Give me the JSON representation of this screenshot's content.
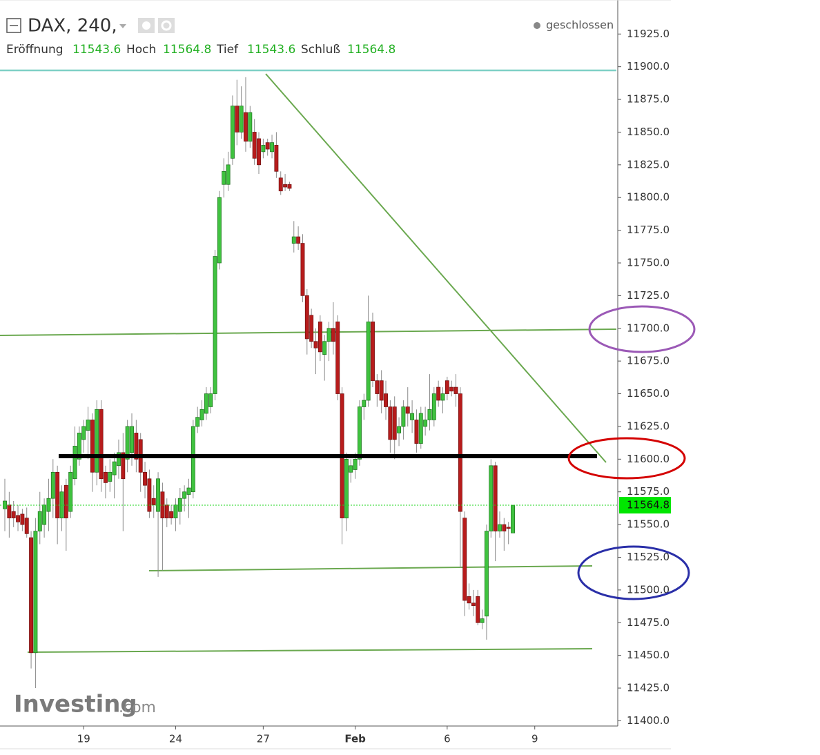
{
  "chart_data": {
    "type": "candlestick",
    "header": {
      "symbol": "DAX, 240,",
      "status": "geschlossen",
      "fields": [
        {
          "label": "Eröffnung",
          "value": 11543.6
        },
        {
          "label": "Hoch",
          "value": 11564.8
        },
        {
          "label": "Tief",
          "value": 11543.6
        },
        {
          "label": "Schluß",
          "value": 11564.8
        }
      ]
    },
    "logo": [
      "Investing",
      ".com"
    ],
    "last_price": {
      "value": 11564.8,
      "label": "11564.8"
    },
    "categories": [
      null,
      null,
      null,
      null,
      null,
      null,
      null,
      null,
      null,
      null,
      null,
      null,
      null,
      null,
      null,
      null,
      null,
      null,
      "19",
      null,
      null,
      null,
      null,
      null,
      null,
      null,
      null,
      null,
      null,
      null,
      null,
      null,
      null,
      null,
      null,
      null,
      null,
      null,
      null,
      "24",
      null,
      null,
      null,
      null,
      null,
      null,
      null,
      null,
      null,
      null,
      null,
      null,
      null,
      null,
      null,
      null,
      null,
      null,
      null,
      "27",
      null,
      null,
      null,
      null,
      null,
      null,
      null,
      null,
      null,
      null,
      null,
      null,
      null,
      null,
      null,
      null,
      null,
      null,
      null,
      null,
      "Feb",
      null,
      null,
      null,
      null,
      null,
      null,
      null,
      null,
      null,
      null,
      null,
      null,
      null,
      null,
      null,
      null,
      null,
      null,
      null,
      null,
      "6",
      null,
      null,
      null,
      null,
      null,
      null,
      null,
      null,
      null,
      null,
      null,
      null,
      null,
      null,
      null,
      null,
      null,
      null,
      null,
      "9"
    ],
    "open": [
      11562,
      11565,
      11560,
      11557,
      11558,
      11555,
      11540,
      11452,
      11545,
      11550,
      11560,
      11570,
      11590,
      11555,
      11580,
      11560,
      11585,
      11600,
      11615,
      11622,
      11630,
      11590,
      11638,
      11590,
      11583,
      11588,
      11595,
      11605,
      11600,
      11605,
      11620,
      11615,
      11590,
      11585,
      11570,
      11560,
      11575,
      11565,
      11560,
      11555,
      11560,
      11570,
      11573,
      11575,
      11625,
      11630,
      11635,
      11640,
      11650,
      11750,
      11810,
      11810,
      11830,
      11870,
      11850,
      11865,
      11843,
      11850,
      11845,
      11835,
      11842,
      11835,
      11840,
      11815,
      11810,
      11810,
      11765,
      11770,
      11765,
      11725,
      11710,
      11690,
      11705,
      11680,
      11690,
      11700,
      11705,
      11650,
      11555,
      11590,
      11592,
      11600,
      11640,
      11645,
      11705,
      11660,
      11660,
      11650,
      11640,
      11640,
      11620,
      11625,
      11640,
      11630,
      11630,
      11612,
      11625,
      11630,
      11630,
      11655,
      11645,
      11660,
      11655,
      11655,
      11650,
      11555,
      11495,
      11490,
      11495,
      11475,
      11480,
      11545,
      11595,
      11545,
      11550,
      11548,
      11543.6,
      null,
      null,
      null,
      null,
      null
    ],
    "high": [
      11585,
      11575,
      11568,
      11565,
      11562,
      11563,
      11545,
      11555,
      11575,
      11570,
      11585,
      11600,
      11595,
      11580,
      11585,
      11595,
      11625,
      11625,
      11630,
      11640,
      11635,
      11645,
      11645,
      11595,
      11600,
      11605,
      11615,
      11620,
      11630,
      11635,
      11630,
      11620,
      11598,
      11592,
      11580,
      11590,
      11582,
      11570,
      11565,
      11570,
      11578,
      11580,
      11585,
      11630,
      11640,
      11645,
      11655,
      11655,
      11760,
      11805,
      11830,
      11835,
      11878,
      11890,
      11885,
      11892,
      11870,
      11860,
      11850,
      11845,
      11845,
      11848,
      11850,
      11820,
      11818,
      11812,
      11782,
      11778,
      11772,
      11730,
      11715,
      11700,
      11710,
      11695,
      11705,
      11720,
      11710,
      11655,
      11605,
      11600,
      11605,
      11645,
      11650,
      11725,
      11712,
      11665,
      11668,
      11660,
      11645,
      11648,
      11632,
      11645,
      11655,
      11645,
      11638,
      11640,
      11640,
      11665,
      11655,
      11660,
      11655,
      11663,
      11660,
      11665,
      11655,
      11560,
      11505,
      11500,
      11500,
      11485,
      11550,
      11600,
      11598,
      11560,
      11555,
      11552,
      11564.8,
      null,
      null,
      null,
      null,
      null
    ],
    "low": [
      11545,
      11540,
      11548,
      11545,
      11545,
      11540,
      11440,
      11425,
      11535,
      11540,
      11545,
      11555,
      11535,
      11545,
      11530,
      11555,
      11580,
      11595,
      11605,
      11600,
      11575,
      11580,
      11575,
      11570,
      11575,
      11570,
      11585,
      11545,
      11590,
      11595,
      11590,
      11575,
      11570,
      11555,
      11555,
      11510,
      11515,
      11548,
      11550,
      11545,
      11550,
      11560,
      11555,
      11570,
      11620,
      11625,
      11630,
      11635,
      11645,
      11745,
      11800,
      11805,
      11825,
      11840,
      11845,
      11835,
      11838,
      11825,
      11818,
      11830,
      11832,
      11830,
      11815,
      11802,
      11805,
      11805,
      11758,
      11760,
      11720,
      11680,
      11685,
      11665,
      11675,
      11660,
      11675,
      11680,
      11645,
      11535,
      11545,
      11582,
      11585,
      11595,
      11630,
      11640,
      11655,
      11640,
      11635,
      11630,
      11605,
      11600,
      11610,
      11615,
      11625,
      11620,
      11605,
      11608,
      11618,
      11622,
      11625,
      11640,
      11635,
      11645,
      11648,
      11640,
      11517,
      11480,
      11485,
      11480,
      11473,
      11470,
      11462,
      11540,
      11522,
      11540,
      11530,
      11535,
      11543.6,
      null,
      null,
      null,
      null,
      null
    ],
    "close": [
      11568,
      11555,
      11555,
      11552,
      11550,
      11543,
      11452,
      11545,
      11560,
      11565,
      11570,
      11590,
      11555,
      11575,
      11555,
      11590,
      11610,
      11620,
      11625,
      11630,
      11590,
      11638,
      11585,
      11582,
      11590,
      11598,
      11605,
      11585,
      11625,
      11625,
      11600,
      11590,
      11580,
      11560,
      11565,
      11585,
      11555,
      11555,
      11555,
      11565,
      11570,
      11575,
      11578,
      11625,
      11632,
      11638,
      11650,
      11650,
      11755,
      11800,
      11820,
      11825,
      11870,
      11850,
      11870,
      11843,
      11865,
      11830,
      11825,
      11840,
      11837,
      11842,
      11820,
      11805,
      11808,
      11807,
      11770,
      11765,
      11725,
      11692,
      11690,
      11685,
      11682,
      11690,
      11700,
      11690,
      11650,
      11555,
      11600,
      11595,
      11600,
      11640,
      11645,
      11705,
      11660,
      11650,
      11645,
      11640,
      11615,
      11615,
      11625,
      11640,
      11635,
      11635,
      11612,
      11635,
      11630,
      11638,
      11650,
      11645,
      11650,
      11650,
      11652,
      11650,
      11560,
      11492,
      11490,
      11488,
      11475,
      11478,
      11545,
      11595,
      11545,
      11550,
      11545,
      11547,
      11564.8,
      null,
      null,
      null,
      null,
      null
    ],
    "up_color": "#3fc23f",
    "down_color": "#b71c1c",
    "wick_color": "#8a8a8a",
    "ylim": [
      11396,
      11951
    ],
    "yticks": [
      {
        "value": 11400,
        "label": "11400.0"
      },
      {
        "value": 11425,
        "label": "11425.0"
      },
      {
        "value": 11450,
        "label": "11450.0"
      },
      {
        "value": 11475,
        "label": "11475.0"
      },
      {
        "value": 11500,
        "label": "11500.0"
      },
      {
        "value": 11525,
        "label": "11525.0"
      },
      {
        "value": 11550,
        "label": "11550.0"
      },
      {
        "value": 11575,
        "label": "11575.0"
      },
      {
        "value": 11600,
        "label": "11600.0"
      },
      {
        "value": 11625,
        "label": "11625.0"
      },
      {
        "value": 11650,
        "label": "11650.0"
      },
      {
        "value": 11675,
        "label": "11675.0"
      },
      {
        "value": 11700,
        "label": "11700.0"
      },
      {
        "value": 11725,
        "label": "11725.0"
      },
      {
        "value": 11750,
        "label": "11750.0"
      },
      {
        "value": 11775,
        "label": "11775.0"
      },
      {
        "value": 11800,
        "label": "11800.0"
      },
      {
        "value": 11825,
        "label": "11825.0"
      },
      {
        "value": 11850,
        "label": "11850.0"
      },
      {
        "value": 11875,
        "label": "11875.0"
      },
      {
        "value": 11900,
        "label": "11900.0"
      },
      {
        "value": 11925,
        "label": "11925.0"
      }
    ],
    "grid": false
  }
}
